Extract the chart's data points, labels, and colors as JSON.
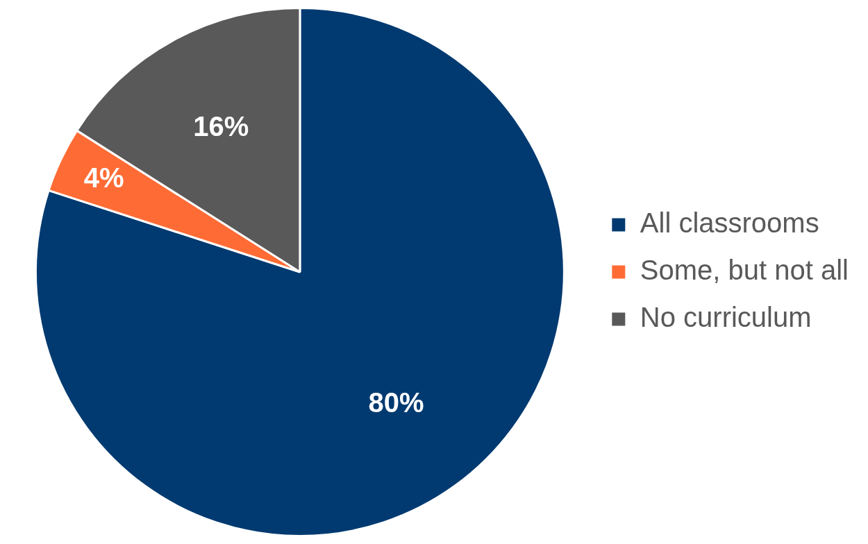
{
  "chart_data": {
    "type": "pie",
    "categories": [
      "All classrooms",
      "Some, but not all",
      "No curriculum"
    ],
    "values": [
      80,
      4,
      16
    ],
    "colors": [
      "#003a70",
      "#ff6b35",
      "#595959"
    ],
    "value_labels": [
      "80%",
      "4%",
      "16%"
    ],
    "legend": "right"
  }
}
